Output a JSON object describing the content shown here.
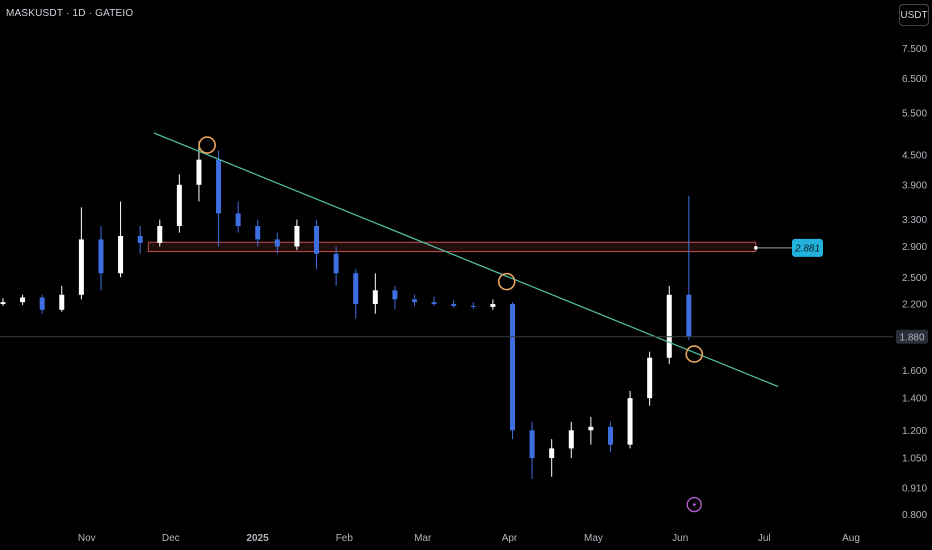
{
  "header": {
    "symbol_title": "MASKUSDT · 1D · GATEIO",
    "unit_button": "USDT"
  },
  "colors": {
    "background": "#000000",
    "candle_up": "#ffffff",
    "candle_down": "#3d6fe0",
    "trendline": "#4fb89a",
    "resistance_zone": "#c24d4d",
    "marker": "#e8a45c",
    "price_tag": "#21b3de",
    "event_icon": "#b35ccf"
  },
  "chart_data": {
    "type": "candlestick",
    "title": "",
    "xlabel": "",
    "ylabel": "",
    "y_scale": "log",
    "ylim": [
      0.78,
      8.2
    ],
    "xlim": [
      "2024-10-01",
      "2025-08-16"
    ],
    "grid": false,
    "x_tick_labels": [
      {
        "date": "2024-11-01",
        "label": "Nov"
      },
      {
        "date": "2024-12-01",
        "label": "Dec"
      },
      {
        "date": "2025-01-01",
        "label": "2025"
      },
      {
        "date": "2025-02-01",
        "label": "Feb"
      },
      {
        "date": "2025-03-01",
        "label": "Mar"
      },
      {
        "date": "2025-04-01",
        "label": "Apr"
      },
      {
        "date": "2025-05-01",
        "label": "May"
      },
      {
        "date": "2025-06-01",
        "label": "Jun"
      },
      {
        "date": "2025-07-01",
        "label": "Jul"
      },
      {
        "date": "2025-08-01",
        "label": "Aug"
      }
    ],
    "y_tick_labels": [
      "7.500",
      "6.500",
      "5.500",
      "4.500",
      "3.900",
      "3.300",
      "2.900",
      "2.500",
      "2.200",
      "1.600",
      "1.400",
      "1.200",
      "1.050",
      "0.910",
      "0.800"
    ],
    "current_price": {
      "value": 1.88,
      "label": "1.880"
    },
    "price_tag": {
      "value": 2.881,
      "label": "2.881"
    },
    "resistance_zone": {
      "low": 2.83,
      "high": 2.96,
      "from": "2024-11-23",
      "to": "2025-06-28"
    },
    "trendline": {
      "start": {
        "date": "2024-11-25",
        "price": 5.0
      },
      "end": {
        "date": "2025-07-06",
        "price": 1.48
      }
    },
    "markers": [
      {
        "date": "2024-12-14",
        "price": 4.72
      },
      {
        "date": "2025-03-31",
        "price": 2.45
      },
      {
        "date": "2025-06-06",
        "price": 1.73
      }
    ],
    "event_marker": {
      "date": "2025-06-06",
      "price": 0.84
    },
    "candles": [
      {
        "date": "2024-10-01",
        "o": 2.2,
        "h": 2.26,
        "l": 2.18,
        "c": 2.22
      },
      {
        "date": "2024-10-08",
        "o": 2.22,
        "h": 2.3,
        "l": 2.19,
        "c": 2.27
      },
      {
        "date": "2024-10-15",
        "o": 2.27,
        "h": 2.3,
        "l": 2.1,
        "c": 2.14
      },
      {
        "date": "2024-10-22",
        "o": 2.14,
        "h": 2.4,
        "l": 2.12,
        "c": 2.3
      },
      {
        "date": "2024-10-29",
        "o": 2.3,
        "h": 3.5,
        "l": 2.25,
        "c": 3.0
      },
      {
        "date": "2024-11-05",
        "o": 3.0,
        "h": 3.2,
        "l": 2.35,
        "c": 2.55
      },
      {
        "date": "2024-11-12",
        "o": 2.55,
        "h": 3.6,
        "l": 2.5,
        "c": 3.05
      },
      {
        "date": "2024-11-19",
        "o": 3.05,
        "h": 3.2,
        "l": 2.8,
        "c": 2.95
      },
      {
        "date": "2024-11-26",
        "o": 2.95,
        "h": 3.3,
        "l": 2.9,
        "c": 3.2
      },
      {
        "date": "2024-12-03",
        "o": 3.2,
        "h": 4.1,
        "l": 3.1,
        "c": 3.9
      },
      {
        "date": "2024-12-10",
        "o": 3.9,
        "h": 4.8,
        "l": 3.6,
        "c": 4.4
      },
      {
        "date": "2024-12-17",
        "o": 4.4,
        "h": 4.6,
        "l": 2.9,
        "c": 3.4
      },
      {
        "date": "2024-12-24",
        "o": 3.4,
        "h": 3.6,
        "l": 3.1,
        "c": 3.2
      },
      {
        "date": "2024-12-31",
        "o": 3.2,
        "h": 3.3,
        "l": 2.9,
        "c": 3.0
      },
      {
        "date": "2025-01-07",
        "o": 3.0,
        "h": 3.1,
        "l": 2.8,
        "c": 2.9
      },
      {
        "date": "2025-01-14",
        "o": 2.9,
        "h": 3.3,
        "l": 2.85,
        "c": 3.2
      },
      {
        "date": "2025-01-21",
        "o": 3.2,
        "h": 3.3,
        "l": 2.6,
        "c": 2.8
      },
      {
        "date": "2025-01-28",
        "o": 2.8,
        "h": 2.9,
        "l": 2.4,
        "c": 2.55
      },
      {
        "date": "2025-02-04",
        "o": 2.55,
        "h": 2.6,
        "l": 2.05,
        "c": 2.2
      },
      {
        "date": "2025-02-11",
        "o": 2.2,
        "h": 2.55,
        "l": 2.1,
        "c": 2.35
      },
      {
        "date": "2025-02-18",
        "o": 2.35,
        "h": 2.4,
        "l": 2.15,
        "c": 2.25
      },
      {
        "date": "2025-02-25",
        "o": 2.25,
        "h": 2.3,
        "l": 2.18,
        "c": 2.22
      },
      {
        "date": "2025-03-04",
        "o": 2.22,
        "h": 2.28,
        "l": 2.18,
        "c": 2.2
      },
      {
        "date": "2025-03-11",
        "o": 2.2,
        "h": 2.24,
        "l": 2.16,
        "c": 2.18
      },
      {
        "date": "2025-03-18",
        "o": 2.18,
        "h": 2.22,
        "l": 2.15,
        "c": 2.17
      },
      {
        "date": "2025-03-25",
        "o": 2.17,
        "h": 2.25,
        "l": 2.14,
        "c": 2.2
      },
      {
        "date": "2025-04-01",
        "o": 2.2,
        "h": 2.22,
        "l": 1.15,
        "c": 1.2
      },
      {
        "date": "2025-04-08",
        "o": 1.2,
        "h": 1.25,
        "l": 0.95,
        "c": 1.05
      },
      {
        "date": "2025-04-15",
        "o": 1.05,
        "h": 1.15,
        "l": 0.96,
        "c": 1.1
      },
      {
        "date": "2025-04-22",
        "o": 1.1,
        "h": 1.25,
        "l": 1.05,
        "c": 1.2
      },
      {
        "date": "2025-04-29",
        "o": 1.2,
        "h": 1.28,
        "l": 1.12,
        "c": 1.22
      },
      {
        "date": "2025-05-06",
        "o": 1.22,
        "h": 1.25,
        "l": 1.08,
        "c": 1.12
      },
      {
        "date": "2025-05-13",
        "o": 1.12,
        "h": 1.45,
        "l": 1.1,
        "c": 1.4
      },
      {
        "date": "2025-05-20",
        "o": 1.4,
        "h": 1.75,
        "l": 1.35,
        "c": 1.7
      },
      {
        "date": "2025-05-27",
        "o": 1.7,
        "h": 2.4,
        "l": 1.65,
        "c": 2.3
      },
      {
        "date": "2025-06-03",
        "o": 2.3,
        "h": 3.7,
        "l": 1.85,
        "c": 1.88
      }
    ]
  }
}
